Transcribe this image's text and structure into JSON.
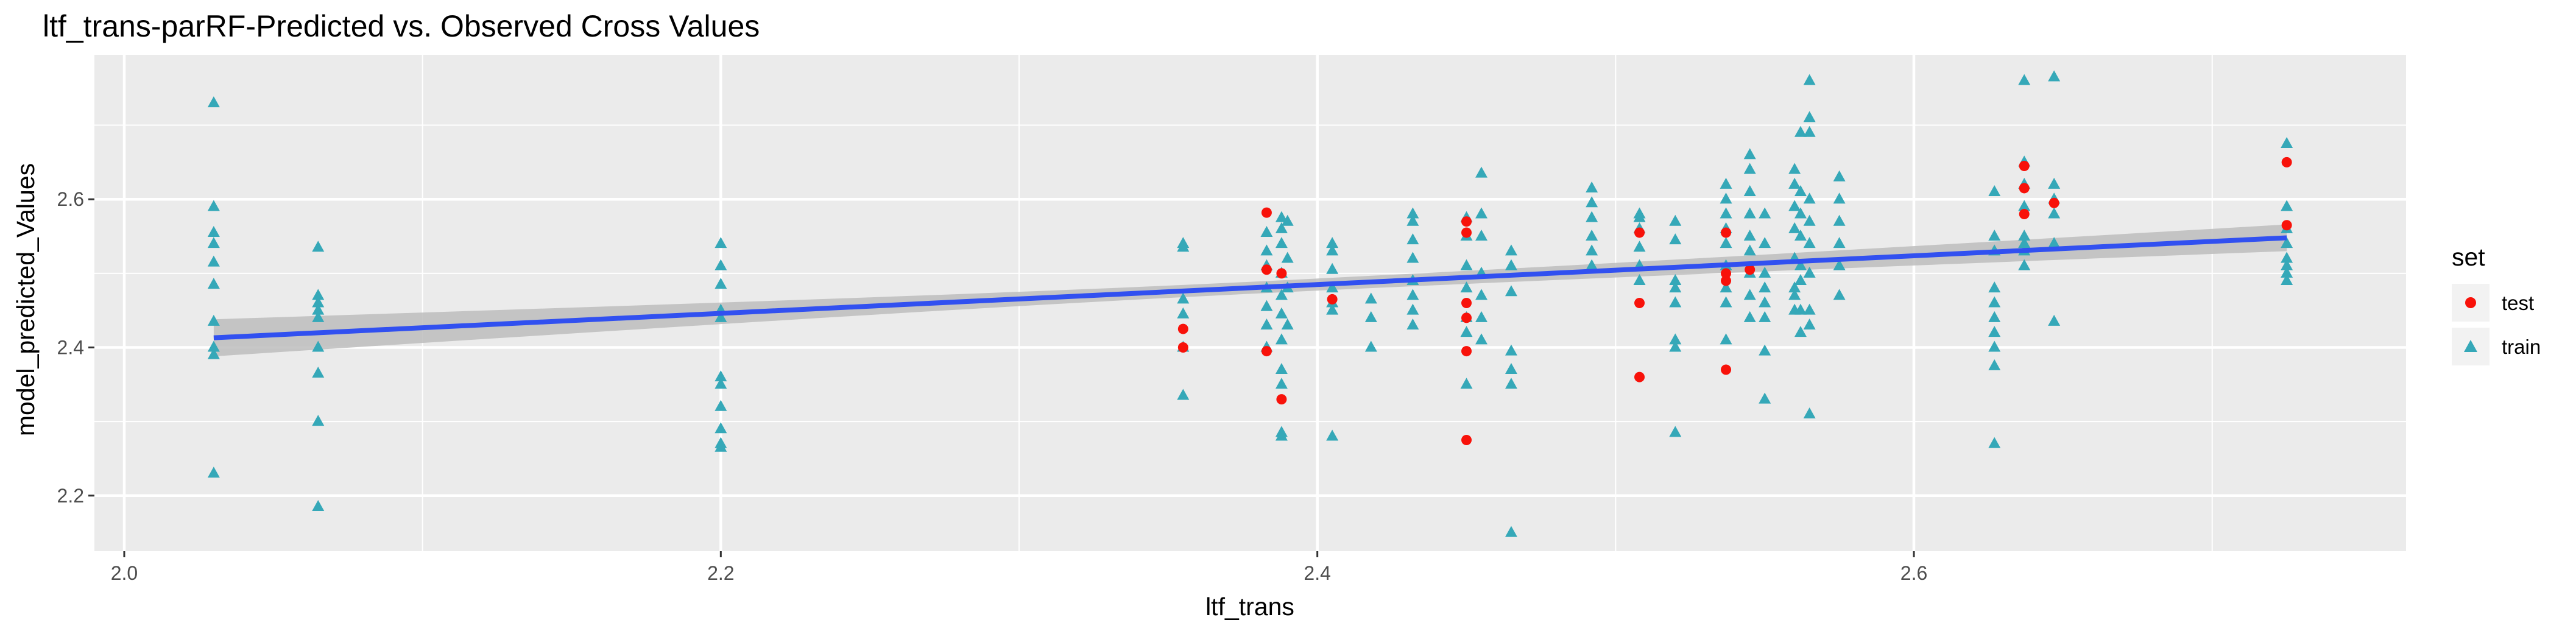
{
  "colors": {
    "panel": "#ebebeb",
    "grid_major": "#ffffff",
    "test": "#f8120a",
    "train": "#35a8b8",
    "line": "#3150f0",
    "ribbon": "#bdbdbd"
  },
  "chart_data": {
    "type": "scatter",
    "title": "ltf_trans-parRF-Predicted vs. Observed Cross Values",
    "xlabel": "ltf_trans",
    "ylabel": "model_predicted_Values",
    "xlim": [
      1.99,
      2.765
    ],
    "ylim": [
      2.125,
      2.795
    ],
    "x_ticks": [
      2.0,
      2.2,
      2.4,
      2.6
    ],
    "x_tick_labels": [
      "2.0",
      "2.2",
      "2.4",
      "2.6"
    ],
    "y_ticks": [
      2.2,
      2.4,
      2.6
    ],
    "y_tick_labels": [
      "2.2",
      "2.4",
      "2.6"
    ],
    "grid": true,
    "legend": {
      "title": "set",
      "position": "right",
      "entries": [
        {
          "label": "test",
          "shape": "circle"
        },
        {
          "label": "train",
          "shape": "triangle"
        }
      ]
    },
    "trend": {
      "type": "linear",
      "x": [
        2.03,
        2.725
      ],
      "y": [
        2.413,
        2.548
      ],
      "ci_halfwidth": [
        0.025,
        0.018
      ]
    },
    "series": [
      {
        "name": "train",
        "points": [
          [
            2.03,
            2.73
          ],
          [
            2.03,
            2.59
          ],
          [
            2.03,
            2.555
          ],
          [
            2.03,
            2.54
          ],
          [
            2.03,
            2.515
          ],
          [
            2.03,
            2.485
          ],
          [
            2.03,
            2.435
          ],
          [
            2.03,
            2.4
          ],
          [
            2.03,
            2.39
          ],
          [
            2.03,
            2.23
          ],
          [
            2.065,
            2.535
          ],
          [
            2.065,
            2.47
          ],
          [
            2.065,
            2.46
          ],
          [
            2.065,
            2.45
          ],
          [
            2.065,
            2.44
          ],
          [
            2.065,
            2.4
          ],
          [
            2.065,
            2.365
          ],
          [
            2.065,
            2.3
          ],
          [
            2.065,
            2.185
          ],
          [
            2.2,
            2.54
          ],
          [
            2.2,
            2.51
          ],
          [
            2.2,
            2.485
          ],
          [
            2.2,
            2.45
          ],
          [
            2.2,
            2.44
          ],
          [
            2.2,
            2.36
          ],
          [
            2.2,
            2.35
          ],
          [
            2.2,
            2.32
          ],
          [
            2.2,
            2.29
          ],
          [
            2.2,
            2.27
          ],
          [
            2.2,
            2.265
          ],
          [
            2.355,
            2.54
          ],
          [
            2.355,
            2.535
          ],
          [
            2.355,
            2.465
          ],
          [
            2.355,
            2.445
          ],
          [
            2.355,
            2.4
          ],
          [
            2.355,
            2.335
          ],
          [
            2.383,
            2.555
          ],
          [
            2.383,
            2.53
          ],
          [
            2.383,
            2.51
          ],
          [
            2.383,
            2.48
          ],
          [
            2.383,
            2.455
          ],
          [
            2.383,
            2.43
          ],
          [
            2.383,
            2.4
          ],
          [
            2.388,
            2.575
          ],
          [
            2.388,
            2.56
          ],
          [
            2.388,
            2.54
          ],
          [
            2.388,
            2.5
          ],
          [
            2.388,
            2.47
          ],
          [
            2.388,
            2.445
          ],
          [
            2.388,
            2.41
          ],
          [
            2.388,
            2.37
          ],
          [
            2.388,
            2.35
          ],
          [
            2.388,
            2.285
          ],
          [
            2.388,
            2.28
          ],
          [
            2.39,
            2.57
          ],
          [
            2.39,
            2.52
          ],
          [
            2.39,
            2.48
          ],
          [
            2.39,
            2.43
          ],
          [
            2.405,
            2.54
          ],
          [
            2.405,
            2.53
          ],
          [
            2.405,
            2.505
          ],
          [
            2.405,
            2.48
          ],
          [
            2.405,
            2.46
          ],
          [
            2.405,
            2.45
          ],
          [
            2.405,
            2.28
          ],
          [
            2.418,
            2.465
          ],
          [
            2.418,
            2.44
          ],
          [
            2.418,
            2.4
          ],
          [
            2.432,
            2.58
          ],
          [
            2.432,
            2.57
          ],
          [
            2.432,
            2.545
          ],
          [
            2.432,
            2.52
          ],
          [
            2.432,
            2.49
          ],
          [
            2.432,
            2.47
          ],
          [
            2.432,
            2.45
          ],
          [
            2.432,
            2.43
          ],
          [
            2.45,
            2.575
          ],
          [
            2.45,
            2.55
          ],
          [
            2.45,
            2.51
          ],
          [
            2.45,
            2.48
          ],
          [
            2.45,
            2.44
          ],
          [
            2.45,
            2.42
          ],
          [
            2.45,
            2.35
          ],
          [
            2.455,
            2.635
          ],
          [
            2.455,
            2.58
          ],
          [
            2.455,
            2.55
          ],
          [
            2.455,
            2.5
          ],
          [
            2.455,
            2.47
          ],
          [
            2.455,
            2.44
          ],
          [
            2.455,
            2.41
          ],
          [
            2.465,
            2.53
          ],
          [
            2.465,
            2.51
          ],
          [
            2.465,
            2.475
          ],
          [
            2.465,
            2.395
          ],
          [
            2.465,
            2.37
          ],
          [
            2.465,
            2.35
          ],
          [
            2.465,
            2.15
          ],
          [
            2.492,
            2.615
          ],
          [
            2.492,
            2.595
          ],
          [
            2.492,
            2.575
          ],
          [
            2.492,
            2.55
          ],
          [
            2.492,
            2.53
          ],
          [
            2.492,
            2.51
          ],
          [
            2.508,
            2.58
          ],
          [
            2.508,
            2.575
          ],
          [
            2.508,
            2.56
          ],
          [
            2.508,
            2.535
          ],
          [
            2.508,
            2.51
          ],
          [
            2.508,
            2.49
          ],
          [
            2.52,
            2.57
          ],
          [
            2.52,
            2.545
          ],
          [
            2.52,
            2.49
          ],
          [
            2.52,
            2.48
          ],
          [
            2.52,
            2.46
          ],
          [
            2.52,
            2.41
          ],
          [
            2.52,
            2.4
          ],
          [
            2.52,
            2.285
          ],
          [
            2.537,
            2.62
          ],
          [
            2.537,
            2.6
          ],
          [
            2.537,
            2.58
          ],
          [
            2.537,
            2.56
          ],
          [
            2.537,
            2.54
          ],
          [
            2.537,
            2.51
          ],
          [
            2.537,
            2.48
          ],
          [
            2.537,
            2.46
          ],
          [
            2.537,
            2.41
          ],
          [
            2.545,
            2.66
          ],
          [
            2.545,
            2.64
          ],
          [
            2.545,
            2.61
          ],
          [
            2.545,
            2.58
          ],
          [
            2.545,
            2.55
          ],
          [
            2.545,
            2.53
          ],
          [
            2.545,
            2.5
          ],
          [
            2.545,
            2.47
          ],
          [
            2.545,
            2.44
          ],
          [
            2.55,
            2.58
          ],
          [
            2.55,
            2.54
          ],
          [
            2.55,
            2.5
          ],
          [
            2.55,
            2.48
          ],
          [
            2.55,
            2.46
          ],
          [
            2.55,
            2.44
          ],
          [
            2.55,
            2.395
          ],
          [
            2.55,
            2.33
          ],
          [
            2.56,
            2.64
          ],
          [
            2.56,
            2.62
          ],
          [
            2.56,
            2.59
          ],
          [
            2.56,
            2.56
          ],
          [
            2.56,
            2.52
          ],
          [
            2.56,
            2.48
          ],
          [
            2.56,
            2.47
          ],
          [
            2.56,
            2.45
          ],
          [
            2.562,
            2.69
          ],
          [
            2.562,
            2.61
          ],
          [
            2.562,
            2.58
          ],
          [
            2.562,
            2.55
          ],
          [
            2.562,
            2.51
          ],
          [
            2.562,
            2.49
          ],
          [
            2.562,
            2.45
          ],
          [
            2.562,
            2.42
          ],
          [
            2.565,
            2.76
          ],
          [
            2.565,
            2.71
          ],
          [
            2.565,
            2.69
          ],
          [
            2.565,
            2.6
          ],
          [
            2.565,
            2.57
          ],
          [
            2.565,
            2.54
          ],
          [
            2.565,
            2.5
          ],
          [
            2.565,
            2.45
          ],
          [
            2.565,
            2.43
          ],
          [
            2.565,
            2.31
          ],
          [
            2.575,
            2.63
          ],
          [
            2.575,
            2.6
          ],
          [
            2.575,
            2.57
          ],
          [
            2.575,
            2.54
          ],
          [
            2.575,
            2.51
          ],
          [
            2.575,
            2.47
          ],
          [
            2.627,
            2.61
          ],
          [
            2.627,
            2.55
          ],
          [
            2.627,
            2.53
          ],
          [
            2.627,
            2.48
          ],
          [
            2.627,
            2.46
          ],
          [
            2.627,
            2.44
          ],
          [
            2.627,
            2.42
          ],
          [
            2.627,
            2.4
          ],
          [
            2.627,
            2.375
          ],
          [
            2.627,
            2.27
          ],
          [
            2.637,
            2.76
          ],
          [
            2.637,
            2.65
          ],
          [
            2.637,
            2.62
          ],
          [
            2.637,
            2.59
          ],
          [
            2.637,
            2.55
          ],
          [
            2.637,
            2.54
          ],
          [
            2.637,
            2.53
          ],
          [
            2.637,
            2.51
          ],
          [
            2.647,
            2.765
          ],
          [
            2.647,
            2.62
          ],
          [
            2.647,
            2.6
          ],
          [
            2.647,
            2.58
          ],
          [
            2.647,
            2.54
          ],
          [
            2.647,
            2.435
          ],
          [
            2.725,
            2.675
          ],
          [
            2.725,
            2.59
          ],
          [
            2.725,
            2.56
          ],
          [
            2.725,
            2.54
          ],
          [
            2.725,
            2.52
          ],
          [
            2.725,
            2.51
          ],
          [
            2.725,
            2.5
          ],
          [
            2.725,
            2.49
          ]
        ]
      },
      {
        "name": "test",
        "points": [
          [
            2.355,
            2.425
          ],
          [
            2.355,
            2.4
          ],
          [
            2.383,
            2.582
          ],
          [
            2.383,
            2.505
          ],
          [
            2.383,
            2.395
          ],
          [
            2.388,
            2.5
          ],
          [
            2.388,
            2.33
          ],
          [
            2.405,
            2.465
          ],
          [
            2.45,
            2.57
          ],
          [
            2.45,
            2.555
          ],
          [
            2.45,
            2.46
          ],
          [
            2.45,
            2.44
          ],
          [
            2.45,
            2.395
          ],
          [
            2.45,
            2.275
          ],
          [
            2.508,
            2.555
          ],
          [
            2.508,
            2.46
          ],
          [
            2.508,
            2.36
          ],
          [
            2.537,
            2.555
          ],
          [
            2.537,
            2.5
          ],
          [
            2.537,
            2.49
          ],
          [
            2.537,
            2.37
          ],
          [
            2.545,
            2.505
          ],
          [
            2.637,
            2.645
          ],
          [
            2.637,
            2.615
          ],
          [
            2.637,
            2.58
          ],
          [
            2.647,
            2.595
          ],
          [
            2.725,
            2.65
          ],
          [
            2.725,
            2.565
          ]
        ]
      }
    ]
  }
}
